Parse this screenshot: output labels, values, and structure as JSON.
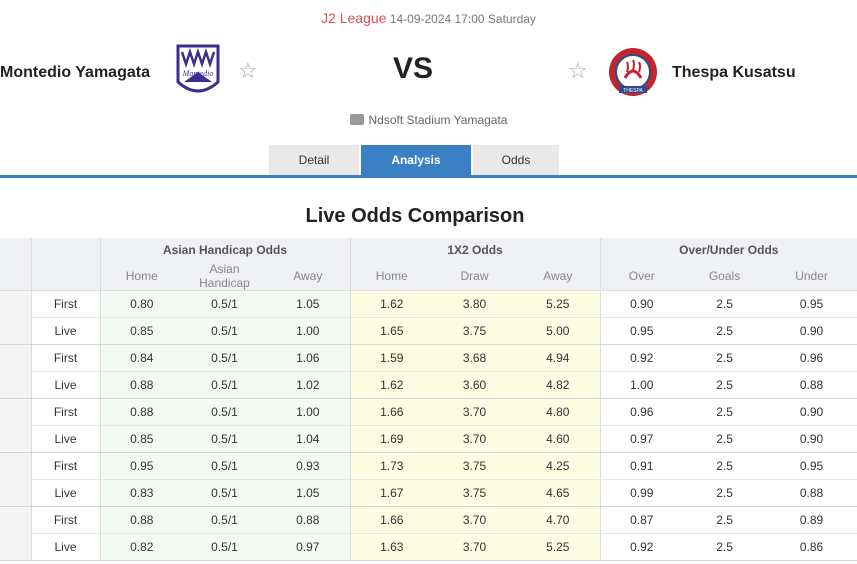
{
  "match": {
    "league": "J2 League",
    "datetime": "14-09-2024 17:00 Saturday",
    "home_team": "Montedio Yamagata",
    "away_team": "Thespa Kusatsu",
    "vs": "VS",
    "venue": "Ndsoft Stadium Yamagata",
    "colors": {
      "accent": "#3b7fc4",
      "league": "#d9534f",
      "home_logo": "#3a2f8f",
      "away_logo": "#c0262d"
    },
    "home_logo_text": "Montedio",
    "away_logo_text": "THESPA"
  },
  "tabs": [
    {
      "label": "Detail",
      "active": false
    },
    {
      "label": "Analysis",
      "active": true
    },
    {
      "label": "Odds",
      "active": false
    }
  ],
  "section_title": "Live Odds Comparison",
  "table": {
    "groups": [
      "Asian Handicap Odds",
      "1X2 Odds",
      "Over/Under Odds"
    ],
    "subheaders": [
      "Home",
      "Asian Handicap",
      "Away",
      "Home",
      "Draw",
      "Away",
      "Over",
      "Goals",
      "Under"
    ],
    "rows": [
      {
        "type": "First",
        "vals": [
          "0.80",
          "0.5/1",
          "1.05",
          "1.62",
          "3.80",
          "5.25",
          "0.90",
          "2.5",
          "0.95"
        ]
      },
      {
        "type": "Live",
        "vals": [
          "0.85",
          "0.5/1",
          "1.00",
          "1.65",
          "3.75",
          "5.00",
          "0.95",
          "2.5",
          "0.90"
        ]
      },
      {
        "type": "First",
        "vals": [
          "0.84",
          "0.5/1",
          "1.06",
          "1.59",
          "3.68",
          "4.94",
          "0.92",
          "2.5",
          "0.96"
        ]
      },
      {
        "type": "Live",
        "vals": [
          "0.88",
          "0.5/1",
          "1.02",
          "1.62",
          "3.60",
          "4.82",
          "1.00",
          "2.5",
          "0.88"
        ]
      },
      {
        "type": "First",
        "vals": [
          "0.88",
          "0.5/1",
          "1.00",
          "1.66",
          "3.70",
          "4.80",
          "0.96",
          "2.5",
          "0.90"
        ]
      },
      {
        "type": "Live",
        "vals": [
          "0.85",
          "0.5/1",
          "1.04",
          "1.69",
          "3.70",
          "4.60",
          "0.97",
          "2.5",
          "0.90"
        ]
      },
      {
        "type": "First",
        "vals": [
          "0.95",
          "0.5/1",
          "0.93",
          "1.73",
          "3.75",
          "4.25",
          "0.91",
          "2.5",
          "0.95"
        ]
      },
      {
        "type": "Live",
        "vals": [
          "0.83",
          "0.5/1",
          "1.05",
          "1.67",
          "3.75",
          "4.65",
          "0.99",
          "2.5",
          "0.88"
        ]
      },
      {
        "type": "First",
        "vals": [
          "0.88",
          "0.5/1",
          "0.88",
          "1.66",
          "3.70",
          "4.70",
          "0.87",
          "2.5",
          "0.89"
        ]
      },
      {
        "type": "Live",
        "vals": [
          "0.82",
          "0.5/1",
          "0.97",
          "1.63",
          "3.70",
          "5.25",
          "0.92",
          "2.5",
          "0.86"
        ]
      }
    ]
  }
}
